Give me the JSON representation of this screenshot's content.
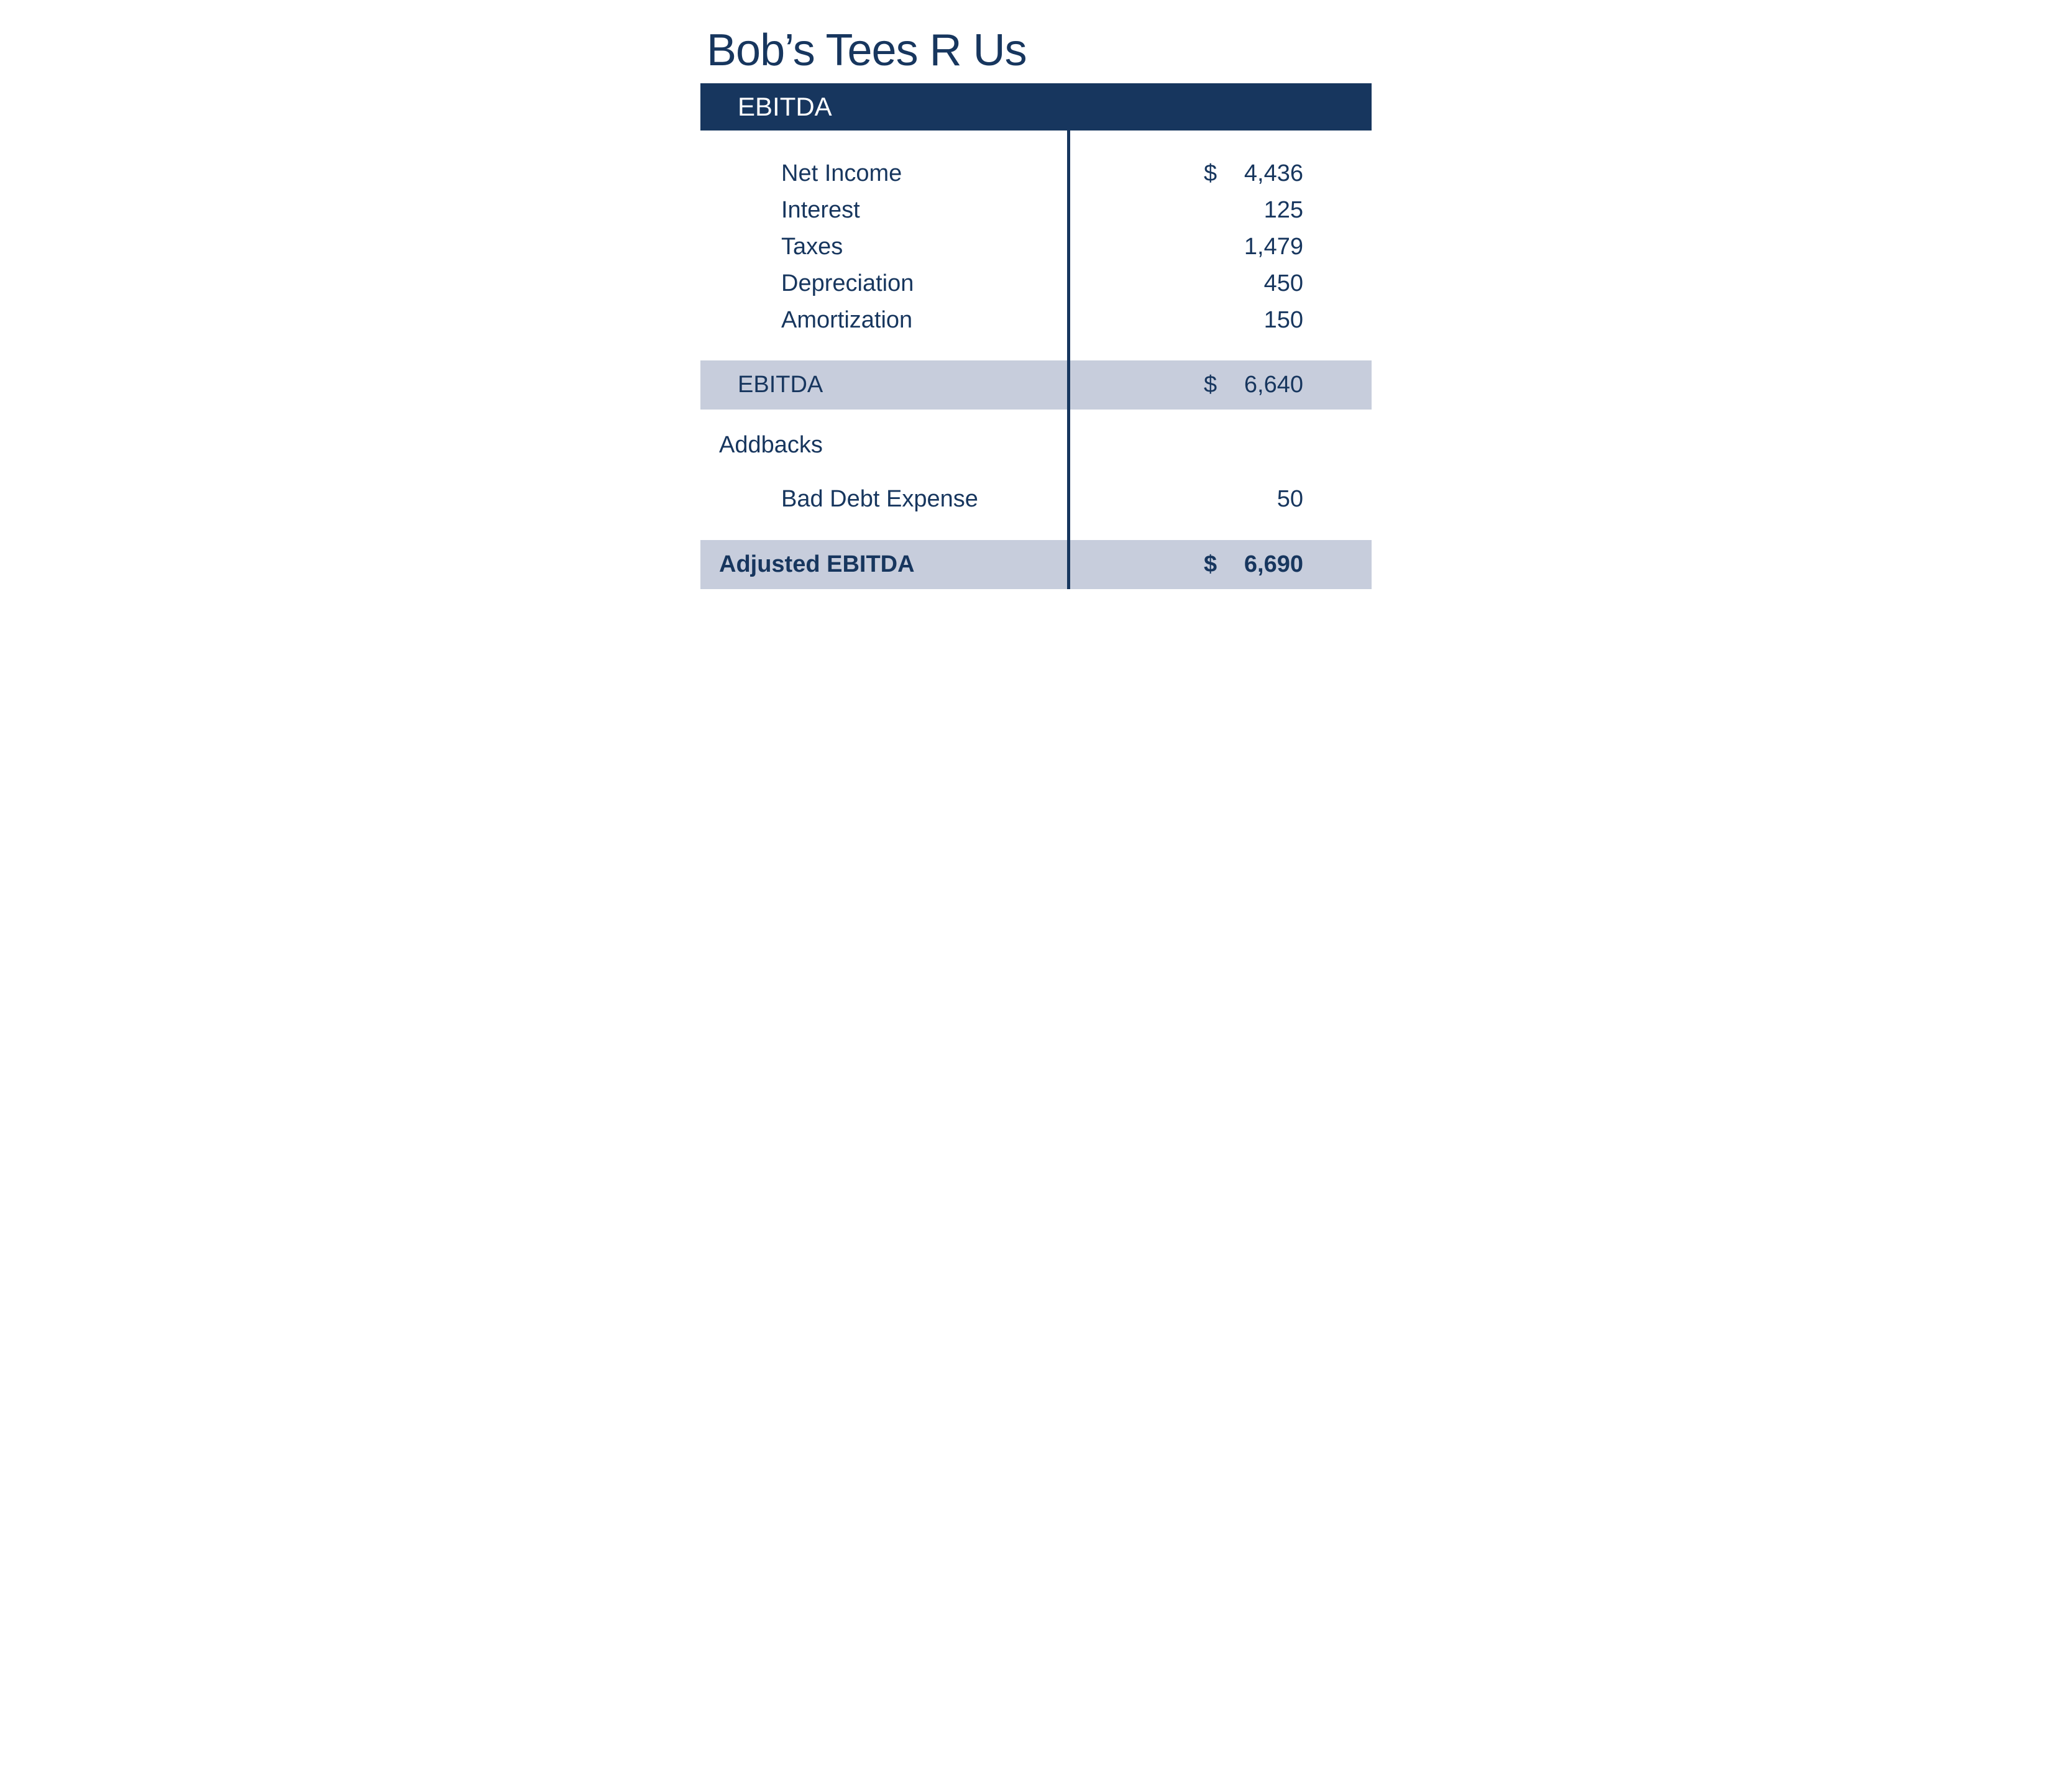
{
  "colors": {
    "primary_dark": "#17365e",
    "header_bg": "#17365e",
    "header_text": "#ffffff",
    "body_text": "#17365e",
    "subtotal_bg": "#c7cddc",
    "divider": "#17365e",
    "page_bg": "#ffffff"
  },
  "typography": {
    "title_fontsize": 72,
    "header_fontsize": 42,
    "body_fontsize": 38
  },
  "title": "Bob’s Tees R Us",
  "header": "EBITDA",
  "lines": {
    "net_income": {
      "label": "Net Income",
      "currency": "$",
      "value": "4,436"
    },
    "interest": {
      "label": "Interest",
      "currency": "",
      "value": "125"
    },
    "taxes": {
      "label": "Taxes",
      "currency": "",
      "value": "1,479"
    },
    "depreciation": {
      "label": "Depreciation",
      "currency": "",
      "value": "450"
    },
    "amortization": {
      "label": "Amortization",
      "currency": "",
      "value": "150"
    }
  },
  "subtotal": {
    "label": "EBITDA",
    "currency": "$",
    "value": "6,640"
  },
  "addbacks_heading": "Addbacks",
  "addbacks": {
    "bad_debt": {
      "label": "Bad Debt Expense",
      "currency": "",
      "value": "50"
    }
  },
  "final": {
    "label": "Adjusted EBITDA",
    "currency": "$",
    "value": "6,690"
  }
}
